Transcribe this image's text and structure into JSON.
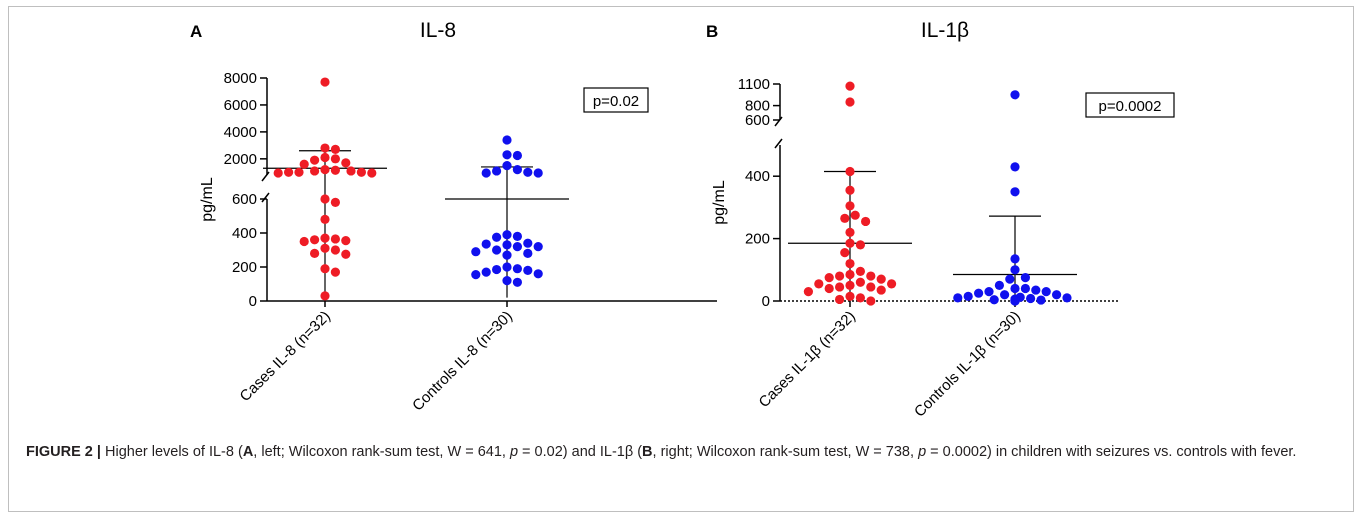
{
  "figure": {
    "caption": {
      "label": "FIGURE 2 |",
      "p1": " Higher levels of IL-8 (",
      "p2": "A",
      "p3": ", left; Wilcoxon rank-sum test, W = 641, ",
      "p4": "p",
      "p5": " = 0.02) and IL-1β (",
      "p6": "B",
      "p7": ", right; Wilcoxon rank-sum test, W = 738, ",
      "p8": "p",
      "p9": " = 0.0002) in children with seizures vs. controls with fever."
    }
  },
  "chart_data": [
    {
      "type": "scatter",
      "panel": "A",
      "title": "IL-8",
      "ylabel": "pg/mL",
      "categories": [
        "Cases IL-8 (n=32)",
        "Controls IL-8 (n=30)"
      ],
      "annotation": "p=0.02",
      "axis_broken": true,
      "y_lower": {
        "range": [
          0,
          600
        ],
        "ticks": [
          0,
          200,
          400,
          600
        ]
      },
      "y_upper": {
        "range": [
          800,
          8000
        ],
        "ticks": [
          2000,
          4000,
          6000,
          8000
        ]
      },
      "series": [
        {
          "color": "#ee1c25",
          "values": [
            7700,
            2800,
            2700,
            2100,
            2000,
            1900,
            1700,
            1600,
            1200,
            1150,
            1100,
            1100,
            1000,
            1000,
            1000,
            950,
            950,
            600,
            580,
            480,
            370,
            365,
            360,
            355,
            350,
            310,
            300,
            280,
            275,
            190,
            170,
            30
          ],
          "mean": 1300,
          "sd_upper": 2600,
          "sd_lower": 20
        },
        {
          "color": "#1010ee",
          "values": [
            3400,
            2300,
            2250,
            1500,
            1200,
            1100,
            1000,
            950,
            950,
            390,
            380,
            375,
            340,
            335,
            330,
            320,
            320,
            300,
            290,
            280,
            270,
            200,
            190,
            185,
            180,
            170,
            160,
            155,
            120,
            110
          ],
          "mean": 600,
          "sd_upper": 1400,
          "sd_lower": 20
        }
      ]
    },
    {
      "type": "scatter",
      "panel": "B",
      "title": "IL-1β",
      "ylabel": "pg/mL",
      "categories": [
        "Cases IL-1β (n=32)",
        "Controls IL-1β (n=30)"
      ],
      "annotation": "p=0.0002",
      "axis_broken": true,
      "y_lower": {
        "range": [
          0,
          500
        ],
        "ticks": [
          0,
          200,
          400
        ]
      },
      "y_upper": {
        "range": [
          600,
          1100
        ],
        "ticks": [
          600,
          800,
          1100
        ]
      },
      "series": [
        {
          "color": "#ee1c25",
          "values": [
            1070,
            850,
            415,
            355,
            305,
            275,
            265,
            255,
            220,
            185,
            180,
            155,
            120,
            95,
            85,
            80,
            80,
            75,
            70,
            60,
            55,
            55,
            50,
            45,
            45,
            40,
            35,
            30,
            15,
            10,
            5,
            0
          ],
          "mean": 185,
          "sd_upper": 415,
          "sd_lower": 0
        },
        {
          "color": "#1010ee",
          "values": [
            950,
            430,
            350,
            135,
            100,
            75,
            70,
            50,
            40,
            40,
            35,
            30,
            30,
            25,
            20,
            20,
            15,
            12,
            10,
            10,
            8,
            6,
            5,
            4,
            3,
            2,
            1,
            1,
            0,
            0
          ],
          "mean": 85,
          "sd_upper": 272,
          "sd_lower": 0
        }
      ]
    }
  ]
}
